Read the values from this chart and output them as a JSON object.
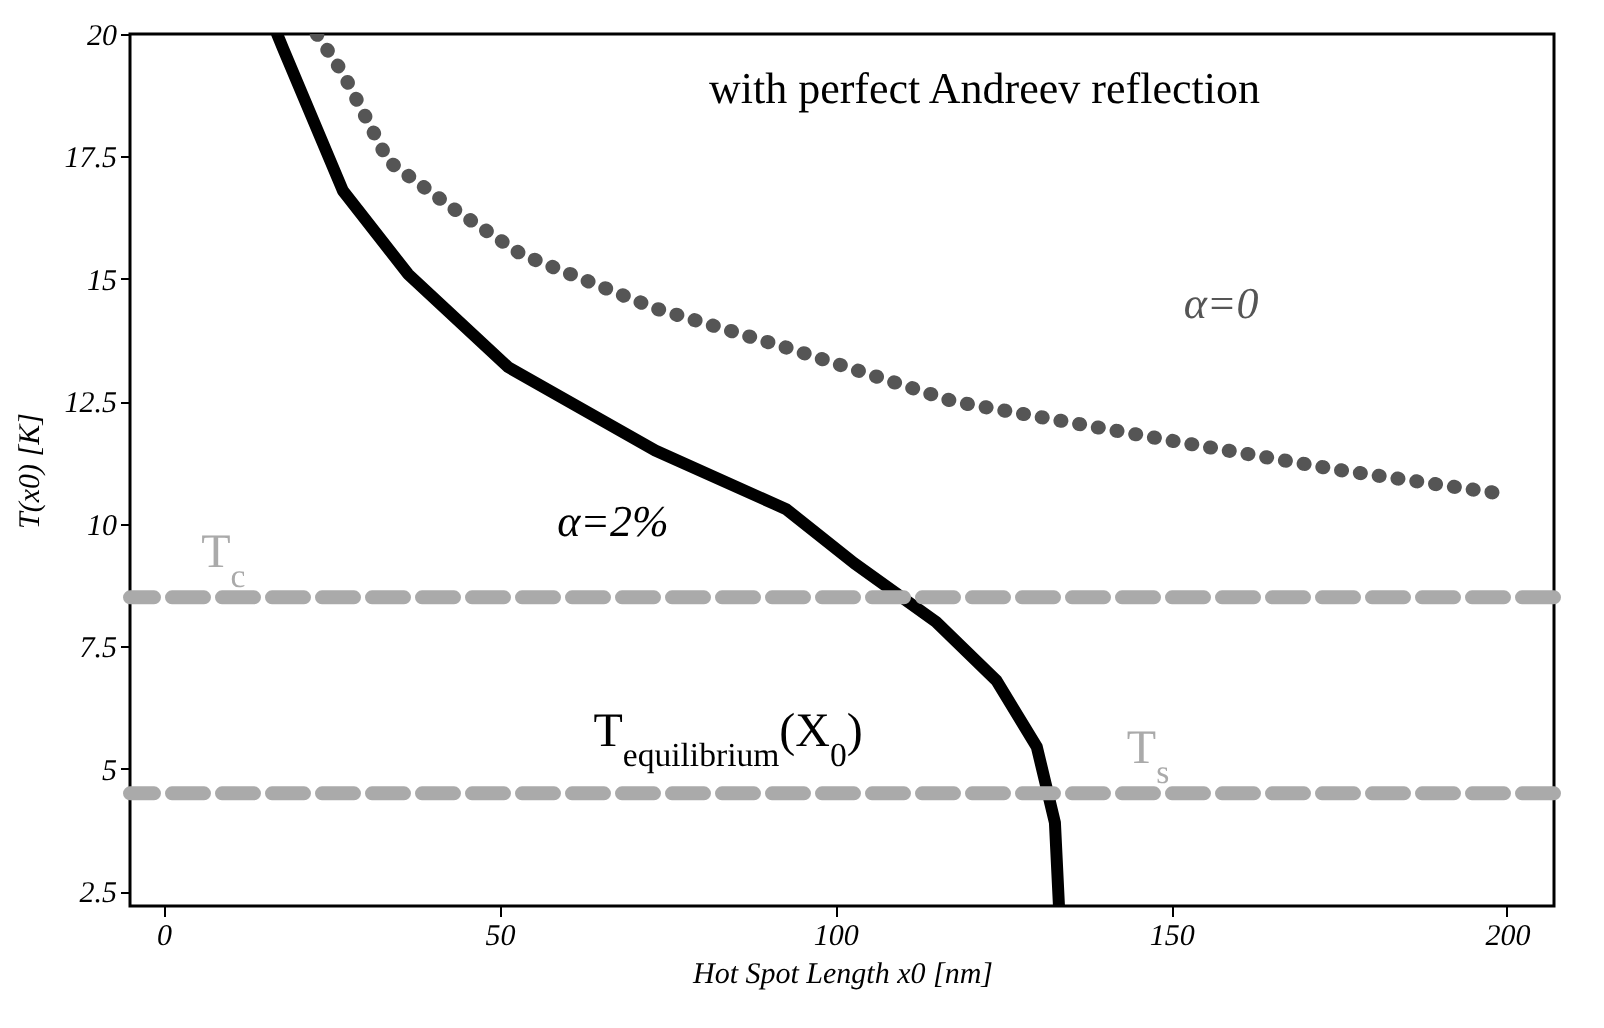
{
  "chart_data": {
    "type": "line",
    "xlabel": "Hot Spot Length x0 [nm]",
    "ylabel": "T(x0) [K]",
    "xlim": [
      -5,
      207
    ],
    "ylim": [
      2.2,
      20
    ],
    "xticks": [
      0,
      50,
      100,
      150,
      200
    ],
    "yticks": [
      2.5,
      5,
      7.5,
      10,
      12.5,
      15,
      17.5,
      20
    ],
    "grid": false,
    "series": [
      {
        "name": "α=0",
        "color": "#555555",
        "line_style": "dotted",
        "x": [
          22.8,
          26.7,
          33.5,
          43.5,
          53.3,
          73.2,
          92.7,
          117.6,
          150,
          175,
          200
        ],
        "values": [
          20,
          19.2,
          17.4,
          16.4,
          15.5,
          14.4,
          13.6,
          12.5,
          11.7,
          11.1,
          10.6
        ]
      },
      {
        "name": "α=2%",
        "color": "#000000",
        "line_style": "solid",
        "x": [
          16.9,
          17.8,
          26.7,
          36.4,
          51.3,
          73.2,
          92.7,
          102.8,
          115,
          124,
          130,
          132.7,
          133.3
        ],
        "values": [
          20,
          19.7,
          16.8,
          15.1,
          13.2,
          11.5,
          10.3,
          9.2,
          8.0,
          6.8,
          5.45,
          3.9,
          2.2
        ]
      }
    ],
    "ref_lines": [
      {
        "axis": "y",
        "value": 8.5,
        "label": "T$_{c}$",
        "color": "#aaaaaa",
        "line_style": "dashed"
      },
      {
        "axis": "y",
        "value": 4.5,
        "label": "T$_{s}$",
        "color": "#aaaaaa",
        "line_style": "dashed"
      }
    ],
    "annotations": [
      "with perfect Andreev reflection",
      "T$_{equilibrium}$(X$_{0}$)"
    ]
  }
}
